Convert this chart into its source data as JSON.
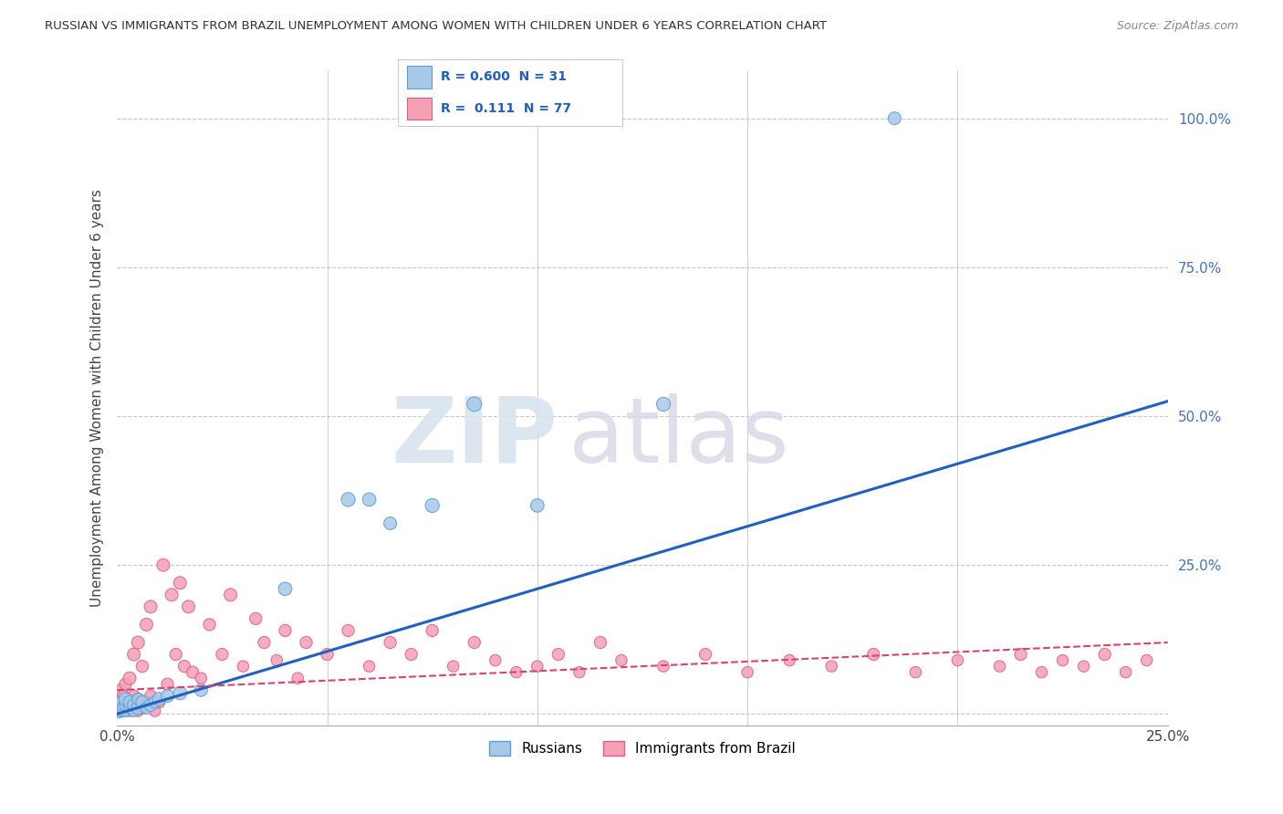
{
  "title": "RUSSIAN VS IMMIGRANTS FROM BRAZIL UNEMPLOYMENT AMONG WOMEN WITH CHILDREN UNDER 6 YEARS CORRELATION CHART",
  "source": "Source: ZipAtlas.com",
  "ylabel_label": "Unemployment Among Women with Children Under 6 years",
  "xlim": [
    0.0,
    0.25
  ],
  "ylim": [
    -0.02,
    1.08
  ],
  "legend_label_russian": "Russians",
  "legend_label_brazil": "Immigrants from Brazil",
  "watermark_zip": "ZIP",
  "watermark_atlas": "atlas",
  "russian_fill": "#a8c8e8",
  "russian_edge": "#5a9fd4",
  "brazil_fill": "#f4a0b5",
  "brazil_edge": "#e06080",
  "russian_line_color": "#2060c0",
  "brazil_line_color": "#e04070",
  "background_color": "#ffffff",
  "grid_color": "#c8c8c8",
  "ytick_color": "#4472C4",
  "russians_x": [
    0.0005,
    0.001,
    0.001,
    0.001,
    0.0015,
    0.002,
    0.002,
    0.002,
    0.003,
    0.003,
    0.004,
    0.004,
    0.005,
    0.005,
    0.006,
    0.007,
    0.008,
    0.009,
    0.01,
    0.012,
    0.015,
    0.02,
    0.04,
    0.055,
    0.06,
    0.065,
    0.075,
    0.085,
    0.1,
    0.13,
    0.185
  ],
  "russians_y": [
    0.005,
    0.01,
    0.005,
    0.02,
    0.01,
    0.005,
    0.015,
    0.025,
    0.01,
    0.02,
    0.005,
    0.015,
    0.01,
    0.025,
    0.02,
    0.01,
    0.015,
    0.02,
    0.025,
    0.03,
    0.035,
    0.04,
    0.21,
    0.36,
    0.36,
    0.32,
    0.35,
    0.52,
    0.35,
    0.52,
    1.0
  ],
  "russians_size": [
    120,
    100,
    80,
    90,
    100,
    80,
    90,
    110,
    90,
    100,
    80,
    100,
    110,
    90,
    100,
    90,
    100,
    90,
    110,
    100,
    110,
    100,
    110,
    120,
    110,
    100,
    120,
    130,
    110,
    120,
    100
  ],
  "brazil_x": [
    0.0002,
    0.0005,
    0.001,
    0.001,
    0.001,
    0.0015,
    0.0015,
    0.002,
    0.002,
    0.002,
    0.003,
    0.003,
    0.003,
    0.004,
    0.004,
    0.004,
    0.005,
    0.005,
    0.005,
    0.006,
    0.006,
    0.007,
    0.007,
    0.008,
    0.008,
    0.009,
    0.01,
    0.011,
    0.012,
    0.013,
    0.014,
    0.015,
    0.016,
    0.017,
    0.018,
    0.02,
    0.022,
    0.025,
    0.027,
    0.03,
    0.033,
    0.035,
    0.038,
    0.04,
    0.043,
    0.045,
    0.05,
    0.055,
    0.06,
    0.065,
    0.07,
    0.075,
    0.08,
    0.085,
    0.09,
    0.095,
    0.1,
    0.105,
    0.11,
    0.115,
    0.12,
    0.13,
    0.14,
    0.15,
    0.16,
    0.17,
    0.18,
    0.19,
    0.2,
    0.21,
    0.215,
    0.22,
    0.225,
    0.23,
    0.235,
    0.24,
    0.245
  ],
  "brazil_y": [
    0.005,
    0.01,
    0.005,
    0.02,
    0.04,
    0.01,
    0.03,
    0.005,
    0.015,
    0.05,
    0.005,
    0.02,
    0.06,
    0.01,
    0.03,
    0.1,
    0.005,
    0.025,
    0.12,
    0.01,
    0.08,
    0.02,
    0.15,
    0.03,
    0.18,
    0.005,
    0.02,
    0.25,
    0.05,
    0.2,
    0.1,
    0.22,
    0.08,
    0.18,
    0.07,
    0.06,
    0.15,
    0.1,
    0.2,
    0.08,
    0.16,
    0.12,
    0.09,
    0.14,
    0.06,
    0.12,
    0.1,
    0.14,
    0.08,
    0.12,
    0.1,
    0.14,
    0.08,
    0.12,
    0.09,
    0.07,
    0.08,
    0.1,
    0.07,
    0.12,
    0.09,
    0.08,
    0.1,
    0.07,
    0.09,
    0.08,
    0.1,
    0.07,
    0.09,
    0.08,
    0.1,
    0.07,
    0.09,
    0.08,
    0.1,
    0.07,
    0.09
  ],
  "brazil_size": [
    80,
    90,
    80,
    100,
    90,
    80,
    90,
    80,
    100,
    90,
    80,
    90,
    100,
    80,
    90,
    100,
    80,
    90,
    100,
    80,
    90,
    80,
    100,
    90,
    100,
    80,
    90,
    100,
    90,
    100,
    90,
    100,
    90,
    100,
    90,
    80,
    90,
    90,
    100,
    80,
    90,
    90,
    80,
    90,
    80,
    90,
    90,
    90,
    80,
    90,
    90,
    90,
    80,
    90,
    80,
    80,
    80,
    90,
    80,
    90,
    80,
    80,
    90,
    80,
    80,
    80,
    90,
    80,
    80,
    80,
    90,
    80,
    80,
    80,
    90,
    80,
    80
  ],
  "russian_trend_x": [
    0.0,
    0.25
  ],
  "russian_trend_y": [
    0.0,
    0.525
  ],
  "brazil_trend_x": [
    0.0,
    0.25
  ],
  "brazil_trend_y": [
    0.04,
    0.12
  ]
}
